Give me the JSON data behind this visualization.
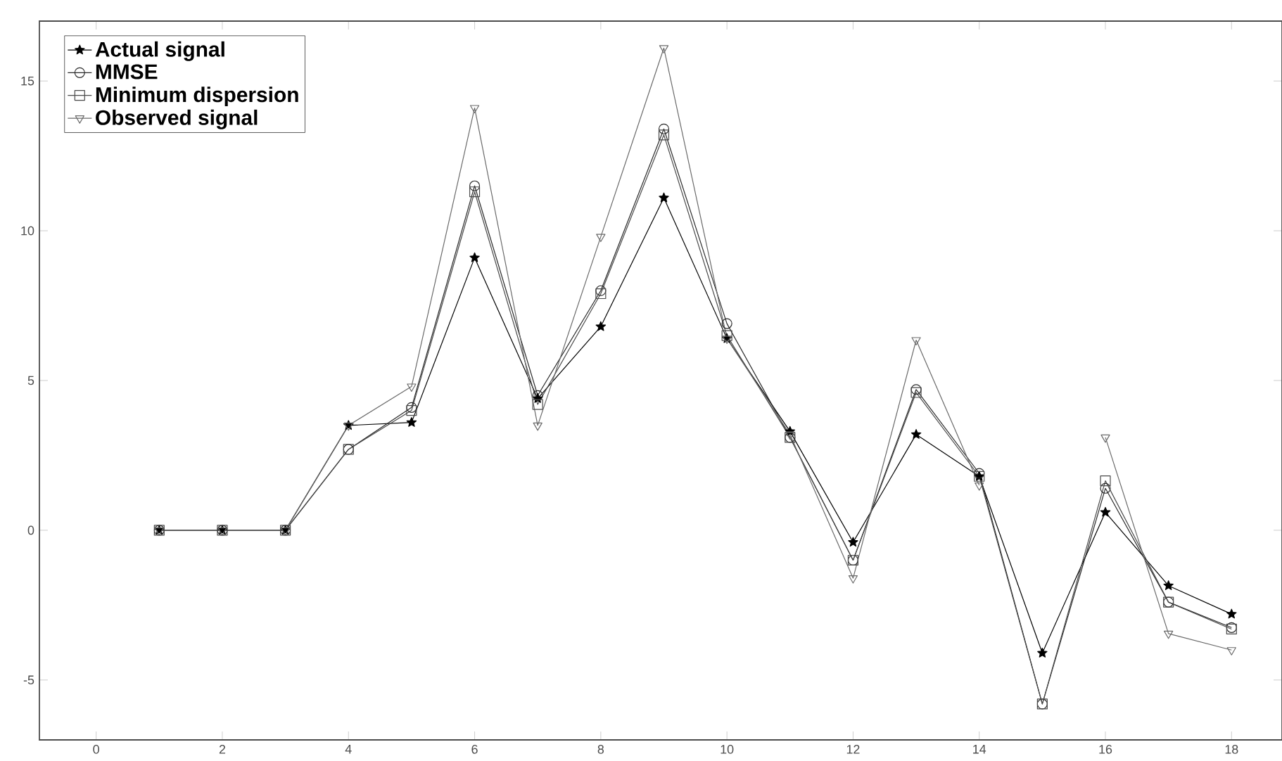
{
  "chart_data": {
    "type": "line",
    "x": [
      1,
      2,
      3,
      4,
      5,
      6,
      7,
      8,
      9,
      10,
      11,
      12,
      13,
      14,
      15,
      16,
      17,
      18
    ],
    "series": [
      {
        "name": "Actual signal",
        "color": "#000000",
        "marker": "star",
        "values": [
          0,
          0,
          0,
          3.5,
          3.6,
          9.1,
          4.4,
          6.8,
          11.1,
          6.4,
          3.3,
          -0.4,
          3.2,
          1.8,
          -4.1,
          0.6,
          -1.85,
          -2.8
        ]
      },
      {
        "name": "MMSE",
        "color": "#2a2a2a",
        "marker": "circle",
        "values": [
          0,
          0,
          0,
          2.7,
          4.1,
          11.5,
          4.5,
          8.0,
          13.4,
          6.9,
          3.1,
          -1.0,
          4.7,
          1.9,
          -5.8,
          1.4,
          -2.4,
          -3.25
        ]
      },
      {
        "name": "Minimum dispersion",
        "color": "#4a4a4a",
        "marker": "square",
        "values": [
          0,
          0,
          0,
          2.7,
          4.0,
          11.3,
          4.2,
          7.9,
          13.2,
          6.5,
          3.1,
          -1.0,
          4.6,
          1.8,
          -5.8,
          1.65,
          -2.4,
          -3.3
        ]
      },
      {
        "name": "Observed signal",
        "color": "#6a6a6a",
        "marker": "triangle",
        "values": [
          0,
          0,
          0,
          3.5,
          4.8,
          14.1,
          3.5,
          9.8,
          16.1,
          6.4,
          3.2,
          -1.6,
          6.35,
          1.5,
          null,
          3.1,
          -3.45,
          -4.0
        ]
      }
    ],
    "xlim": [
      -0.9,
      18.8
    ],
    "ylim": [
      -7,
      17
    ],
    "xticks": [
      0,
      2,
      4,
      6,
      8,
      10,
      12,
      14,
      16,
      18
    ],
    "yticks": [
      -5,
      0,
      5,
      10,
      15
    ],
    "legend": "top left",
    "line_style": "solid"
  }
}
